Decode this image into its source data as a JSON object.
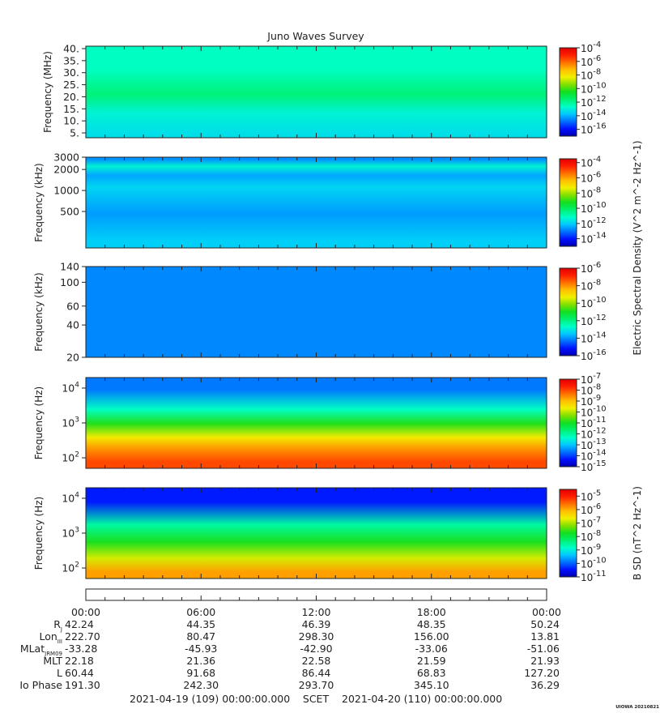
{
  "title": "Juno Waves Survey",
  "corner_label": "UIOWA 20210821",
  "colors": {
    "background": "#ffffff",
    "palette": [
      "#0000b0",
      "#0010ff",
      "#0070ff",
      "#00c8ff",
      "#00ffc8",
      "#00f070",
      "#10e020",
      "#80e000",
      "#f0f000",
      "#ffc000",
      "#ff7000",
      "#ff2000",
      "#e00000"
    ]
  },
  "colorbar_titles": {
    "electric": "Electric Spectral Density (V^2 m^-2 Hz^-1)",
    "magnetic": "B SD (nT^2 Hz^-1)"
  },
  "chart_data": [
    {
      "type": "heatmap",
      "name": "panel-1",
      "ylabel": "Frequency (MHz)",
      "yscale": "linear",
      "ylim": [
        3,
        41
      ],
      "yticks": [
        {
          "value": 5,
          "label": "5."
        },
        {
          "value": 10,
          "label": "10."
        },
        {
          "value": 15,
          "label": "15."
        },
        {
          "value": 20,
          "label": "20."
        },
        {
          "value": 25,
          "label": "25."
        },
        {
          "value": 30,
          "label": "30."
        },
        {
          "value": 35,
          "label": "35."
        },
        {
          "value": 40,
          "label": "40."
        }
      ],
      "colorbar": {
        "min_exp": -17,
        "max_exp": -4,
        "labels": [
          {
            "base": "10",
            "exp": "-4"
          },
          {
            "base": "10",
            "exp": "-6"
          },
          {
            "base": "10",
            "exp": "-8"
          },
          {
            "base": "10",
            "exp": "-10"
          },
          {
            "base": "10",
            "exp": "-12"
          },
          {
            "base": "10",
            "exp": "-14"
          },
          {
            "base": "10",
            "exp": "-16"
          }
        ],
        "label_exps": [
          -4,
          -6,
          -8,
          -10,
          -12,
          -14,
          -16
        ]
      },
      "bands": [
        {
          "f_lo": 3,
          "f_hi": 7,
          "log_value": -13.3
        },
        {
          "f_lo": 7,
          "f_hi": 19.5,
          "log_value": -12.9
        },
        {
          "f_lo": 19.5,
          "f_hi": 22.5,
          "log_value": -11.7
        },
        {
          "f_lo": 22.5,
          "f_hi": 41,
          "log_value": -12.6
        }
      ]
    },
    {
      "type": "heatmap",
      "name": "panel-2",
      "ylabel": "Frequency (kHz)",
      "yscale": "log",
      "ylim": [
        150,
        3000
      ],
      "yticks": [
        {
          "value": 500,
          "label": "500"
        },
        {
          "value": 1000,
          "label": "1000"
        },
        {
          "value": 2000,
          "label": "2000"
        },
        {
          "value": 3000,
          "label": "3000"
        }
      ],
      "colorbar": {
        "min_exp": -15,
        "max_exp": -3.5,
        "labels": [
          {
            "base": "10",
            "exp": "-4"
          },
          {
            "base": "10",
            "exp": "-6"
          },
          {
            "base": "10",
            "exp": "-8"
          },
          {
            "base": "10",
            "exp": "-10"
          },
          {
            "base": "10",
            "exp": "-12"
          },
          {
            "base": "10",
            "exp": "-14"
          }
        ],
        "label_exps": [
          -4,
          -6,
          -8,
          -10,
          -12,
          -14
        ]
      },
      "bands": [
        {
          "f_lo": 150,
          "f_hi": 240,
          "log_value": -12.0
        },
        {
          "f_lo": 240,
          "f_hi": 900,
          "log_value": -12.6
        },
        {
          "f_lo": 900,
          "f_hi": 1400,
          "log_value": -11.9
        },
        {
          "f_lo": 1400,
          "f_hi": 1900,
          "log_value": -12.5
        },
        {
          "f_lo": 1900,
          "f_hi": 2600,
          "log_value": -11.4
        },
        {
          "f_lo": 2600,
          "f_hi": 3000,
          "log_value": -12.7
        }
      ]
    },
    {
      "type": "heatmap",
      "name": "panel-3",
      "ylabel": "Frequency (kHz)",
      "yscale": "log",
      "ylim": [
        20,
        140
      ],
      "yticks": [
        {
          "value": 20,
          "label": "20"
        },
        {
          "value": 40,
          "label": "40"
        },
        {
          "value": 60,
          "label": "60"
        },
        {
          "value": 100,
          "label": "100"
        },
        {
          "value": 140,
          "label": "140"
        }
      ],
      "colorbar": {
        "min_exp": -16,
        "max_exp": -6,
        "labels": [
          {
            "base": "10",
            "exp": "-6"
          },
          {
            "base": "10",
            "exp": "-8"
          },
          {
            "base": "10",
            "exp": "-10"
          },
          {
            "base": "10",
            "exp": "-12"
          },
          {
            "base": "10",
            "exp": "-14"
          },
          {
            "base": "10",
            "exp": "-16"
          }
        ],
        "label_exps": [
          -6,
          -8,
          -10,
          -12,
          -14,
          -16
        ]
      },
      "bands": [
        {
          "f_lo": 20,
          "f_hi": 140,
          "log_value": -14.1
        }
      ]
    },
    {
      "type": "heatmap",
      "name": "panel-4",
      "ylabel": "Frequency (Hz)",
      "yscale": "log",
      "ylim": [
        50,
        20000
      ],
      "yticks": [
        {
          "value": 100,
          "label_base": "10",
          "label_exp": "2"
        },
        {
          "value": 1000,
          "label_base": "10",
          "label_exp": "3"
        },
        {
          "value": 10000,
          "label_base": "10",
          "label_exp": "4"
        }
      ],
      "colorbar": {
        "min_exp": -15,
        "max_exp": -7,
        "labels": [
          {
            "base": "10",
            "exp": "-7"
          },
          {
            "base": "10",
            "exp": "-8"
          },
          {
            "base": "10",
            "exp": "-9"
          },
          {
            "base": "10",
            "exp": "-10"
          },
          {
            "base": "10",
            "exp": "-11"
          },
          {
            "base": "10",
            "exp": "-12"
          },
          {
            "base": "10",
            "exp": "-13"
          },
          {
            "base": "10",
            "exp": "-14"
          },
          {
            "base": "10",
            "exp": "-15"
          }
        ],
        "label_exps": [
          -7,
          -8,
          -9,
          -10,
          -11,
          -12,
          -13,
          -14,
          -15
        ]
      },
      "bands": [
        {
          "f_lo": 50,
          "f_hi": 120,
          "log_value": -8.0
        },
        {
          "f_lo": 120,
          "f_hi": 250,
          "log_value": -8.6
        },
        {
          "f_lo": 250,
          "f_hi": 600,
          "log_value": -9.6
        },
        {
          "f_lo": 600,
          "f_hi": 1500,
          "log_value": -10.9
        },
        {
          "f_lo": 1500,
          "f_hi": 4000,
          "log_value": -12.3
        },
        {
          "f_lo": 4000,
          "f_hi": 20000,
          "log_value": -13.6
        }
      ]
    },
    {
      "type": "heatmap",
      "name": "panel-5",
      "ylabel": "Frequency (Hz)",
      "yscale": "log",
      "ylim": [
        50,
        20000
      ],
      "yticks": [
        {
          "value": 100,
          "label_base": "10",
          "label_exp": "2"
        },
        {
          "value": 1000,
          "label_base": "10",
          "label_exp": "3"
        },
        {
          "value": 10000,
          "label_base": "10",
          "label_exp": "4"
        }
      ],
      "colorbar": {
        "min_exp": -11,
        "max_exp": -4.5,
        "labels": [
          {
            "base": "10",
            "exp": "-5"
          },
          {
            "base": "10",
            "exp": "-6"
          },
          {
            "base": "10",
            "exp": "-7"
          },
          {
            "base": "10",
            "exp": "-8"
          },
          {
            "base": "10",
            "exp": "-9"
          },
          {
            "base": "10",
            "exp": "-10"
          },
          {
            "base": "10",
            "exp": "-11"
          }
        ],
        "label_exps": [
          -5,
          -6,
          -7,
          -8,
          -9,
          -10,
          -11
        ]
      },
      "bands": [
        {
          "f_lo": 50,
          "f_hi": 120,
          "log_value": -5.9
        },
        {
          "f_lo": 120,
          "f_hi": 300,
          "log_value": -6.8
        },
        {
          "f_lo": 300,
          "f_hi": 1000,
          "log_value": -7.7
        },
        {
          "f_lo": 1000,
          "f_hi": 3000,
          "log_value": -8.6
        },
        {
          "f_lo": 3000,
          "f_hi": 20000,
          "log_value": -10.4
        }
      ]
    }
  ],
  "time_axis": {
    "tick_labels": [
      "00:00",
      "06:00",
      "12:00",
      "18:00",
      "00:00"
    ],
    "start_label": "2021-04-19 (109) 00:00:00.000",
    "middle_label": "SCET",
    "end_label": "2021-04-20 (110) 00:00:00.000"
  },
  "ephemeris": [
    {
      "label": "R",
      "sub": "J",
      "values": [
        "42.24",
        "44.35",
        "46.39",
        "48.35",
        "50.24"
      ]
    },
    {
      "label": "Lon",
      "sub": "III",
      "values": [
        "222.70",
        "80.47",
        "298.30",
        "156.00",
        "13.81"
      ]
    },
    {
      "label": "MLat",
      "sub": "JRM09",
      "values": [
        "-33.28",
        "-45.93",
        "-42.90",
        "-33.06",
        "-51.06"
      ]
    },
    {
      "label": "MLT",
      "sub": "",
      "values": [
        "22.18",
        "21.36",
        "22.58",
        "21.59",
        "21.93"
      ]
    },
    {
      "label": "L",
      "sub": "",
      "values": [
        "60.44",
        "91.68",
        "86.44",
        "68.83",
        "127.20"
      ]
    },
    {
      "label": "Io Phase",
      "sub": "",
      "values": [
        "191.30",
        "242.30",
        "293.70",
        "345.10",
        "36.29"
      ]
    }
  ]
}
